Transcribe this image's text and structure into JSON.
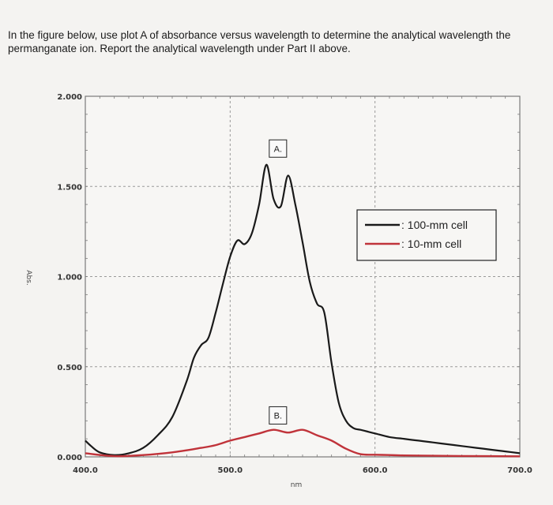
{
  "question": {
    "line1": "In the figure below, use plot A of absorbance versus wavelength to determine the analytical wavelength the",
    "line2": "permanganate ion.  Report the analytical wavelength under Part II above."
  },
  "chart_data": {
    "type": "line",
    "xlabel": "nm",
    "ylabel": "Abs.",
    "xlim": [
      400,
      700
    ],
    "ylim": [
      0,
      2
    ],
    "x_ticks": [
      "400.0",
      "500.0",
      "600.0",
      "700.0"
    ],
    "y_ticks": [
      "0.000",
      "0.500",
      "1.000",
      "1.500",
      "2.000"
    ],
    "grid": true,
    "legend_position": "right",
    "annotations": [
      {
        "text": "A.",
        "x": 533,
        "y": 1.71
      },
      {
        "text": "B.",
        "x": 533,
        "y": 0.23
      }
    ],
    "series": [
      {
        "name": ": 100-mm cell",
        "color": "#1a1a1a",
        "x": [
          400,
          404,
          410,
          420,
          430,
          440,
          450,
          460,
          470,
          475,
          480,
          485,
          490,
          495,
          500,
          505,
          510,
          515,
          520,
          525,
          530,
          535,
          540,
          545,
          550,
          555,
          560,
          565,
          570,
          575,
          580,
          585,
          590,
          595,
          600,
          610,
          620,
          630,
          640,
          650,
          660,
          670,
          680,
          690,
          700
        ],
        "y": [
          0.09,
          0.06,
          0.025,
          0.01,
          0.02,
          0.05,
          0.12,
          0.22,
          0.42,
          0.55,
          0.62,
          0.66,
          0.8,
          0.96,
          1.11,
          1.2,
          1.18,
          1.24,
          1.4,
          1.62,
          1.43,
          1.39,
          1.56,
          1.4,
          1.19,
          0.97,
          0.85,
          0.8,
          0.52,
          0.3,
          0.2,
          0.16,
          0.15,
          0.14,
          0.13,
          0.11,
          0.1,
          0.09,
          0.08,
          0.07,
          0.06,
          0.05,
          0.04,
          0.03,
          0.02
        ]
      },
      {
        "name": ": 10-mm cell",
        "color": "#c0333a",
        "x": [
          400,
          420,
          440,
          460,
          480,
          490,
          500,
          510,
          520,
          530,
          540,
          550,
          560,
          570,
          580,
          590,
          600,
          610,
          620,
          640,
          660,
          680,
          700
        ],
        "y": [
          0.02,
          0.004,
          0.01,
          0.025,
          0.05,
          0.065,
          0.09,
          0.11,
          0.13,
          0.15,
          0.135,
          0.15,
          0.12,
          0.09,
          0.045,
          0.015,
          0.012,
          0.01,
          0.008,
          0.006,
          0.005,
          0.004,
          0.003
        ]
      }
    ]
  }
}
